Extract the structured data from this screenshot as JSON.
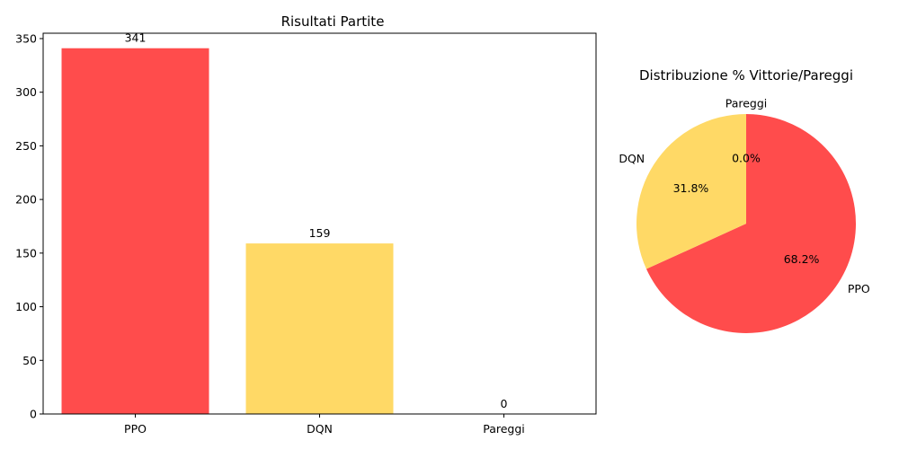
{
  "chart_data": [
    {
      "type": "bar",
      "title": "Risultati Partite",
      "categories": [
        "PPO",
        "DQN",
        "Pareggi"
      ],
      "values": [
        341,
        159,
        0
      ],
      "data_labels": [
        "341",
        "159",
        "0"
      ],
      "colors": [
        "#ff4c4c",
        "#ffd966",
        "#ffd966"
      ],
      "ylim": [
        0,
        355
      ],
      "yticks": [
        0,
        50,
        100,
        150,
        200,
        250,
        300,
        350
      ],
      "grid": false,
      "xlabel": "",
      "ylabel": ""
    },
    {
      "type": "pie",
      "title": "Distribuzione % Vittorie/Pareggi",
      "slices": [
        {
          "label": "PPO",
          "value": 68.2,
          "pct_label": "68.2%",
          "color": "#ff4c4c"
        },
        {
          "label": "DQN",
          "value": 31.8,
          "pct_label": "31.8%",
          "color": "#ffd966"
        },
        {
          "label": "Pareggi",
          "value": 0.0,
          "pct_label": "0.0%",
          "color": "#9fd3f0"
        }
      ]
    }
  ]
}
